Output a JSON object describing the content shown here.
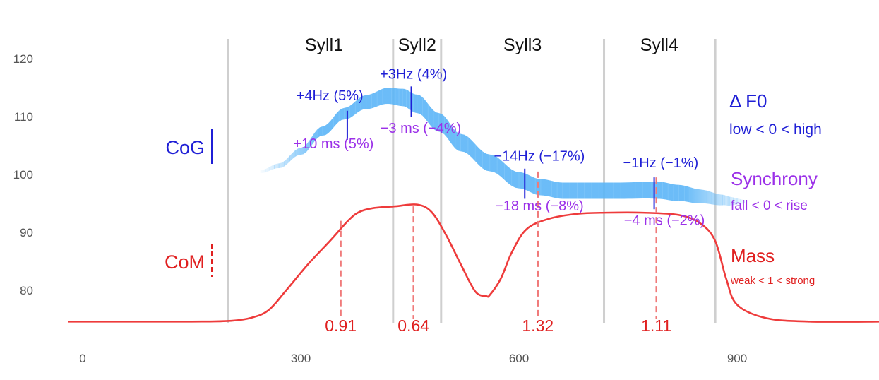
{
  "chart_data": {
    "type": "line",
    "xlim": [
      -20,
      1100
    ],
    "ylim": [
      72,
      124
    ],
    "x_ticks": [
      0,
      300,
      600,
      900
    ],
    "y_ticks": [
      80,
      90,
      100,
      110,
      120
    ],
    "grid": false,
    "syllable_boundaries": [
      200,
      427,
      493,
      717,
      870
    ],
    "syllables": [
      {
        "label": "Syll1",
        "x": 332
      },
      {
        "label": "Syll2",
        "x": 460
      },
      {
        "label": "Syll3",
        "x": 605
      },
      {
        "label": "Syll4",
        "x": 793
      }
    ],
    "f0_series": {
      "x": [
        245,
        270,
        300,
        330,
        360,
        390,
        420,
        440,
        460,
        490,
        520,
        560,
        600,
        630,
        660,
        700,
        740,
        780,
        790,
        820,
        850,
        880,
        890,
        910
      ],
      "y": [
        100.5,
        101.5,
        104,
        107.5,
        110.5,
        112.5,
        113.6,
        113.3,
        112.2,
        109,
        105.5,
        102,
        99,
        97.8,
        97.2,
        97.2,
        97.2,
        97.3,
        97.3,
        96.8,
        96.2,
        95.6,
        95.4,
        95.3
      ],
      "width": [
        0.5,
        0.8,
        1.2,
        1.6,
        2.0,
        2.4,
        2.8,
        3.0,
        3.2,
        3.2,
        3.0,
        2.9,
        2.8,
        2.8,
        2.8,
        2.8,
        2.8,
        2.9,
        3.0,
        2.8,
        2.4,
        1.8,
        1.5,
        0.6
      ],
      "color": "#5bb5f7"
    },
    "mass_series": {
      "x": [
        -20,
        150,
        200,
        230,
        255,
        280,
        310,
        340,
        365,
        380,
        400,
        430,
        460,
        480,
        500,
        520,
        540,
        555,
        560,
        575,
        590,
        610,
        640,
        680,
        720,
        770,
        820,
        850,
        870,
        885,
        900,
        940,
        1000,
        1100
      ],
      "y": [
        74.6,
        74.6,
        74.7,
        75.2,
        76.5,
        80,
        84.5,
        88.5,
        92,
        93.5,
        94.2,
        94.5,
        94.8,
        93.5,
        89.5,
        84.5,
        79.8,
        79,
        79.2,
        82,
        86.5,
        90.5,
        92.3,
        93.2,
        93.4,
        93.4,
        93.0,
        91.5,
        88.5,
        82,
        77.5,
        75.2,
        74.6,
        74.6
      ],
      "color": "#ee3b3b"
    },
    "events": [
      {
        "x_cog": 364,
        "x_com": 355,
        "cog_y": [
          106,
          111
        ],
        "com_y": [
          75,
          92
        ],
        "df0_label": "+4Hz (5%)",
        "df0_x": 340,
        "df0_y": 112.8,
        "sync_label": "+10 ms (5%)",
        "sync_x": 345,
        "sync_y": 104.5,
        "mass_label": "0.91",
        "mass_x": 355
      },
      {
        "x_cog": 452,
        "x_com": 455,
        "cog_y": [
          110,
          115.2
        ],
        "com_y": [
          75,
          94.5
        ],
        "df0_label": "+3Hz (4%)",
        "df0_x": 455,
        "df0_y": 116.5,
        "sync_label": "−3 ms (−4%)",
        "sync_x": 465,
        "sync_y": 107.2,
        "mass_label": "0.64",
        "mass_x": 455
      },
      {
        "x_cog": 608,
        "x_com": 626,
        "cog_y": [
          95.8,
          101
        ],
        "com_y": [
          75,
          100.5
        ],
        "df0_label": "−14Hz (−17%)",
        "df0_x": 628,
        "df0_y": 102.4,
        "sync_label": "−18 ms (−8%)",
        "sync_x": 628,
        "sync_y": 93.8,
        "mass_label": "1.32",
        "mass_x": 626
      },
      {
        "x_cog": 786,
        "x_com": 789,
        "cog_y": [
          94,
          99.5
        ],
        "com_y": [
          75,
          99.5
        ],
        "df0_label": "−1Hz (−1%)",
        "df0_x": 795,
        "df0_y": 101.2,
        "sync_label": "−4 ms (−2%)",
        "sync_x": 800,
        "sync_y": 91.3,
        "mass_label": "1.11",
        "mass_x": 789
      }
    ],
    "side_legend": {
      "cog": {
        "label": "CoG",
        "color": "#1f1fd6"
      },
      "com": {
        "label": "CoM",
        "color": "#e02020"
      }
    },
    "right_legend": {
      "df0": {
        "title": "Δ F0",
        "subtitle": "low < 0 < high",
        "color": "#1f1fd6"
      },
      "sync": {
        "title": "Synchrony",
        "subtitle": "fall < 0 < rise",
        "color": "#9b30e8"
      },
      "mass": {
        "title": "Mass",
        "subtitle": "weak < 1 < strong",
        "color": "#e02020"
      }
    }
  }
}
